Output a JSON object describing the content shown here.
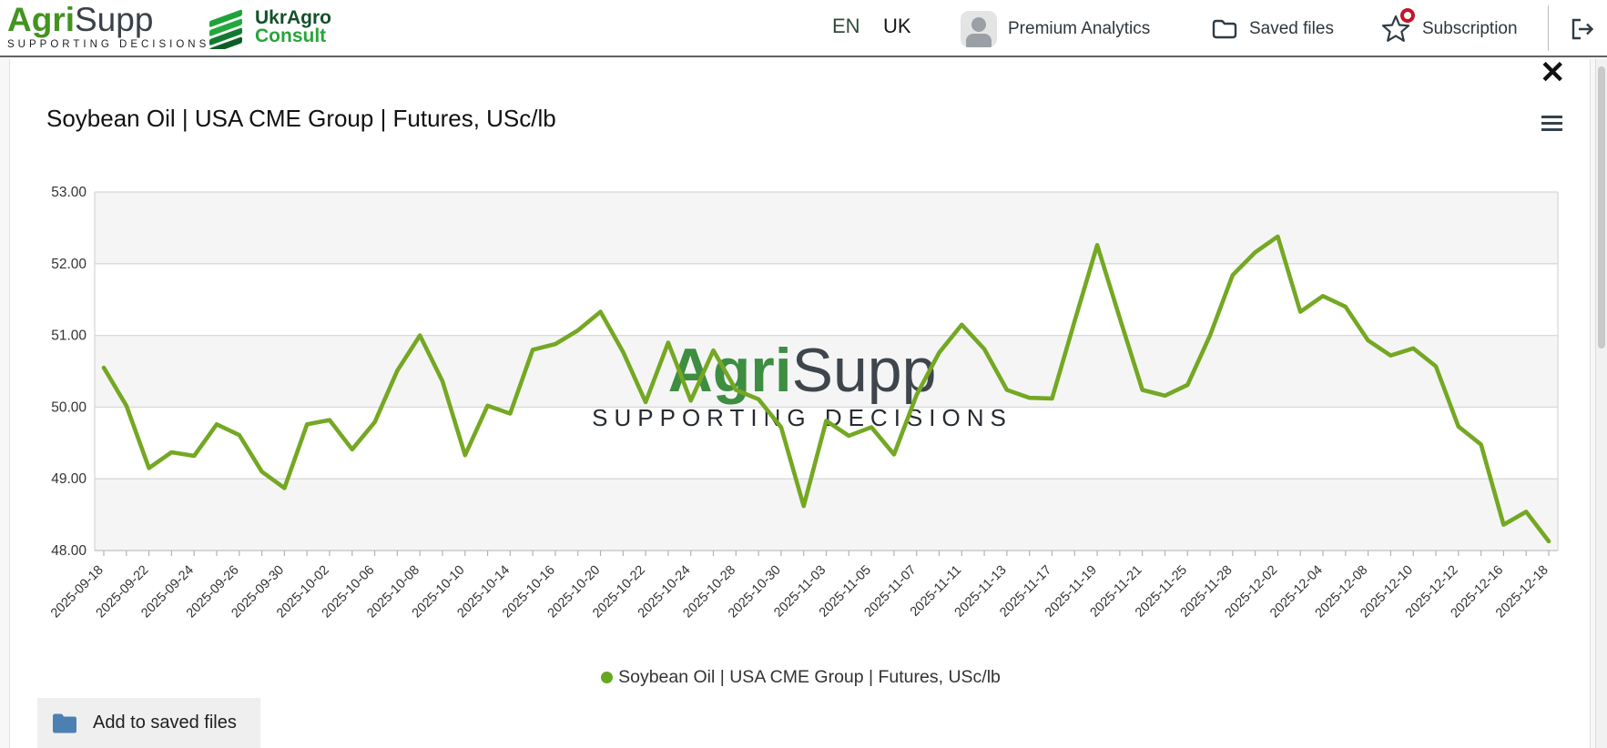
{
  "header": {
    "logo": {
      "brand_green": "Agri",
      "brand_dark": "Supp",
      "tagline": "SUPPORTING DECISIONS"
    },
    "partner_logo": {
      "line1": "UkrAgro",
      "line2": "Consult"
    },
    "language": {
      "en": "EN",
      "uk": "UK"
    },
    "premium_analytics_label": "Premium Analytics",
    "saved_files_label": "Saved files",
    "subscription_label": "Subscription"
  },
  "modal": {
    "title": "Soybean Oil | USA CME Group | Futures, USc/lb",
    "close_glyph": "✕",
    "watermark": {
      "brand_green": "Agri",
      "brand_dark": "Supp",
      "tagline": "SUPPORTING DECISIONS"
    },
    "legend_label": "Soybean Oil | USA CME Group | Futures, USc/lb",
    "add_to_saved_label": "Add to saved files"
  },
  "colors": {
    "line_green": "#74a823",
    "legend_dot_green": "#67a81e",
    "band_gray": "#f5f5f5",
    "grid_gray": "#d8d8d8",
    "axis_label": "#333333",
    "watermark_green": "#3e8e41",
    "watermark_dark": "#3f454c",
    "folder_blue": "#4d80b2",
    "badge_red": "#c41425"
  },
  "chart_data": {
    "type": "line",
    "title": "Soybean Oil | USA CME Group | Futures, USc/lb",
    "xlabel": "",
    "ylabel": "",
    "ylim": [
      48,
      53
    ],
    "y_ticks": [
      "53.00",
      "52.00",
      "51.00",
      "50.00",
      "49.00",
      "48.00"
    ],
    "grid": "horizontal, alternating gray bands",
    "legend_position": "bottom-center",
    "x": [
      "2025-09-18",
      "2025-09-19",
      "2025-09-22",
      "2025-09-23",
      "2025-09-24",
      "2025-09-25",
      "2025-09-26",
      "2025-09-29",
      "2025-09-30",
      "2025-10-01",
      "2025-10-02",
      "2025-10-03",
      "2025-10-06",
      "2025-10-07",
      "2025-10-08",
      "2025-10-09",
      "2025-10-10",
      "2025-10-13",
      "2025-10-14",
      "2025-10-15",
      "2025-10-16",
      "2025-10-17",
      "2025-10-20",
      "2025-10-21",
      "2025-10-22",
      "2025-10-23",
      "2025-10-24",
      "2025-10-27",
      "2025-10-28",
      "2025-10-29",
      "2025-10-30",
      "2025-10-31",
      "2025-11-03",
      "2025-11-04",
      "2025-11-05",
      "2025-11-06",
      "2025-11-07",
      "2025-11-10",
      "2025-11-11",
      "2025-11-12",
      "2025-11-13",
      "2025-11-14",
      "2025-11-17",
      "2025-11-18",
      "2025-11-19",
      "2025-11-20",
      "2025-11-21",
      "2025-11-24",
      "2025-11-25",
      "2025-11-26",
      "2025-11-28",
      "2025-12-01",
      "2025-12-02",
      "2025-12-03",
      "2025-12-04",
      "2025-12-05",
      "2025-12-08",
      "2025-12-09",
      "2025-12-10",
      "2025-12-11",
      "2025-12-12",
      "2025-12-15",
      "2025-12-16",
      "2025-12-17",
      "2025-12-18"
    ],
    "x_tick_labels": [
      "2025-09-18",
      "2025-09-22",
      "2025-09-24",
      "2025-09-26",
      "2025-09-30",
      "2025-10-02",
      "2025-10-06",
      "2025-10-08",
      "2025-10-10",
      "2025-10-14",
      "2025-10-16",
      "2025-10-20",
      "2025-10-22",
      "2025-10-24",
      "2025-10-28",
      "2025-10-30",
      "2025-11-03",
      "2025-11-05",
      "2025-11-07",
      "2025-11-11",
      "2025-11-13",
      "2025-11-17",
      "2025-11-19",
      "2025-11-21",
      "2025-11-25",
      "2025-11-28",
      "2025-12-02",
      "2025-12-04",
      "2025-12-08",
      "2025-12-10",
      "2025-12-12",
      "2025-12-16",
      "2025-12-18"
    ],
    "series": [
      {
        "name": "Soybean Oil | USA CME Group | Futures, USc/lb",
        "color": "#74a823",
        "values": [
          50.55,
          50.02,
          49.15,
          49.37,
          49.32,
          49.76,
          49.61,
          49.1,
          48.87,
          49.76,
          49.82,
          49.41,
          49.79,
          50.51,
          51.0,
          50.36,
          49.33,
          50.02,
          49.91,
          50.8,
          50.88,
          51.07,
          51.33,
          50.77,
          50.07,
          50.9,
          50.09,
          50.79,
          50.24,
          50.11,
          49.72,
          48.62,
          49.81,
          49.6,
          49.72,
          49.34,
          50.17,
          50.76,
          51.15,
          50.81,
          50.24,
          50.13,
          50.12,
          51.2,
          52.26,
          51.24,
          50.24,
          50.16,
          50.31,
          51.0,
          51.84,
          52.16,
          52.38,
          51.33,
          51.55,
          51.4,
          50.93,
          50.72,
          50.82,
          50.57,
          49.73,
          49.48,
          48.36,
          48.54,
          48.13
        ]
      }
    ]
  }
}
